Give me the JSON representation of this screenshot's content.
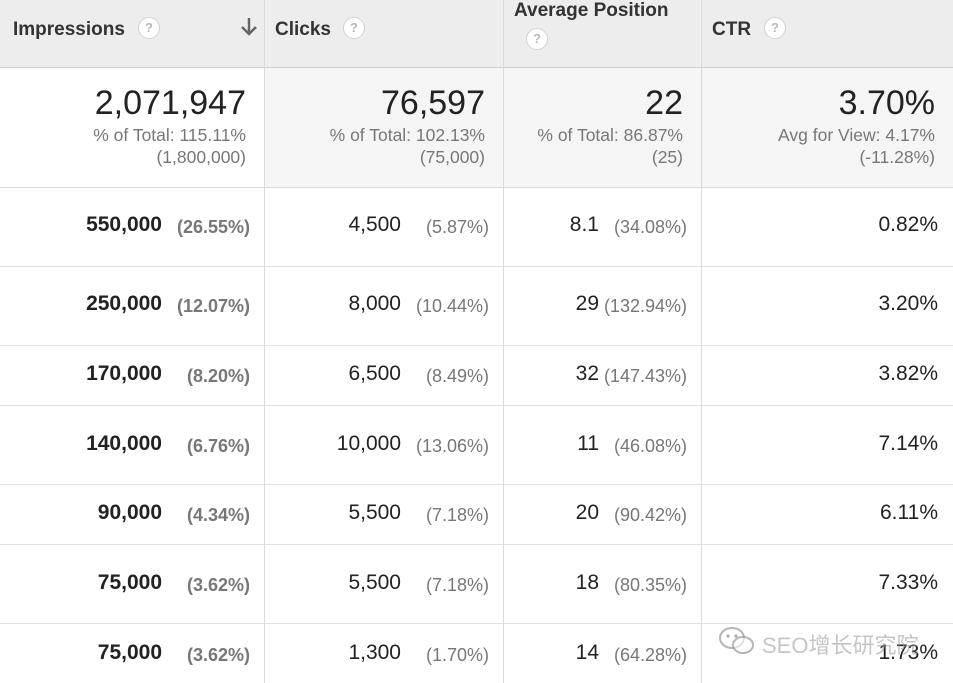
{
  "columns": [
    {
      "title": "Impressions",
      "help": "?",
      "sorted": true
    },
    {
      "title": "Clicks",
      "help": "?"
    },
    {
      "title": "Average Position",
      "help": "?"
    },
    {
      "title": "CTR",
      "help": "?"
    }
  ],
  "totals": [
    {
      "value": "2,071,947",
      "line1": "% of Total: 115.11%",
      "line2": "(1,800,000)"
    },
    {
      "value": "76,597",
      "line1": "% of Total: 102.13%",
      "line2": "(75,000)"
    },
    {
      "value": "22",
      "line1": "% of Total: 86.87%",
      "line2": "(25)"
    },
    {
      "value": "3.70%",
      "line1": "Avg for View: 4.17%",
      "line2": "(-11.28%)"
    }
  ],
  "rows": [
    {
      "impressions": "550,000",
      "impressions_pct": "(26.55%)",
      "clicks": "4,500",
      "clicks_pct": "(5.87%)",
      "position": "8.1",
      "position_pct": "(34.08%)",
      "ctr": "0.82%"
    },
    {
      "impressions": "250,000",
      "impressions_pct": "(12.07%)",
      "clicks": "8,000",
      "clicks_pct": "(10.44%)",
      "position": "29",
      "position_pct": "(132.94%)",
      "ctr": "3.20%"
    },
    {
      "impressions": "170,000",
      "impressions_pct": "(8.20%)",
      "clicks": "6,500",
      "clicks_pct": "(8.49%)",
      "position": "32",
      "position_pct": "(147.43%)",
      "ctr": "3.82%"
    },
    {
      "impressions": "140,000",
      "impressions_pct": "(6.76%)",
      "clicks": "10,000",
      "clicks_pct": "(13.06%)",
      "position": "11",
      "position_pct": "(46.08%)",
      "ctr": "7.14%"
    },
    {
      "impressions": "90,000",
      "impressions_pct": "(4.34%)",
      "clicks": "5,500",
      "clicks_pct": "(7.18%)",
      "position": "20",
      "position_pct": "(90.42%)",
      "ctr": "6.11%"
    },
    {
      "impressions": "75,000",
      "impressions_pct": "(3.62%)",
      "clicks": "5,500",
      "clicks_pct": "(7.18%)",
      "position": "18",
      "position_pct": "(80.35%)",
      "ctr": "7.33%"
    },
    {
      "impressions": "75,000",
      "impressions_pct": "(3.62%)",
      "clicks": "1,300",
      "clicks_pct": "(1.70%)",
      "position": "14",
      "position_pct": "(64.28%)",
      "ctr": "1.73%"
    }
  ],
  "watermark": {
    "text": "SEO增长研究院",
    "icon": "wechat-icon"
  }
}
